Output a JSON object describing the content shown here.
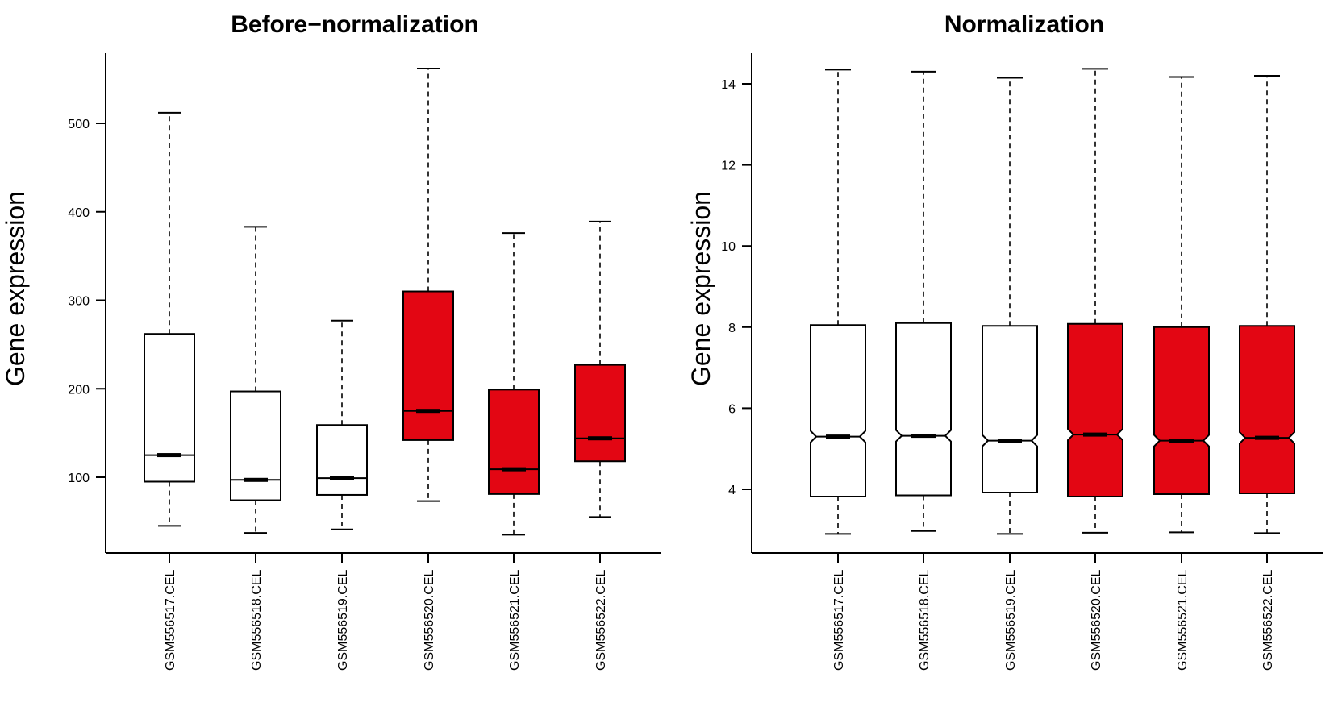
{
  "chart_data": [
    {
      "type": "boxplot",
      "title": "Before−normalization",
      "ylabel": "Gene expression",
      "xlabel": "",
      "ylim": [
        0,
        560
      ],
      "yticks": [
        "100",
        "200",
        "300",
        "400",
        "500"
      ],
      "notched": false,
      "categories": [
        "GSM556517.CEL",
        "GSM556518.CEL",
        "GSM556519.CEL",
        "GSM556520.CEL",
        "GSM556521.CEL",
        "GSM556522.CEL"
      ],
      "boxes": [
        {
          "whisker_low": 45,
          "q1": 95,
          "median": 125,
          "q3": 262,
          "whisker_high": 512,
          "fill": "#ffffff"
        },
        {
          "whisker_low": 37,
          "q1": 74,
          "median": 97,
          "q3": 197,
          "whisker_high": 383,
          "fill": "#ffffff"
        },
        {
          "whisker_low": 41,
          "q1": 80,
          "median": 99,
          "q3": 159,
          "whisker_high": 277,
          "fill": "#ffffff"
        },
        {
          "whisker_low": 73,
          "q1": 142,
          "median": 175,
          "q3": 310,
          "whisker_high": 562,
          "fill": "#e30613"
        },
        {
          "whisker_low": 35,
          "q1": 81,
          "median": 109,
          "q3": 199,
          "whisker_high": 376,
          "fill": "#e30613"
        },
        {
          "whisker_low": 55,
          "q1": 118,
          "median": 144,
          "q3": 227,
          "whisker_high": 389,
          "fill": "#e30613"
        }
      ]
    },
    {
      "type": "boxplot",
      "title": "Normalization",
      "ylabel": "Gene expression",
      "xlabel": "",
      "ylim": [
        2.6,
        14.6
      ],
      "yticks": [
        "4",
        "6",
        "8",
        "10",
        "12",
        "14"
      ],
      "notched": true,
      "categories": [
        "GSM556517.CEL",
        "GSM556518.CEL",
        "GSM556519.CEL",
        "GSM556520.CEL",
        "GSM556521.CEL",
        "GSM556522.CEL"
      ],
      "boxes": [
        {
          "whisker_low": 2.9,
          "q1": 3.82,
          "median": 5.3,
          "q3": 8.05,
          "whisker_high": 14.35,
          "fill": "#ffffff"
        },
        {
          "whisker_low": 2.97,
          "q1": 3.85,
          "median": 5.32,
          "q3": 8.1,
          "whisker_high": 14.3,
          "fill": "#ffffff"
        },
        {
          "whisker_low": 2.9,
          "q1": 3.92,
          "median": 5.2,
          "q3": 8.03,
          "whisker_high": 14.15,
          "fill": "#ffffff"
        },
        {
          "whisker_low": 2.93,
          "q1": 3.82,
          "median": 5.35,
          "q3": 8.08,
          "whisker_high": 14.37,
          "fill": "#e30613"
        },
        {
          "whisker_low": 2.94,
          "q1": 3.88,
          "median": 5.2,
          "q3": 8.0,
          "whisker_high": 14.17,
          "fill": "#e30613"
        },
        {
          "whisker_low": 2.92,
          "q1": 3.9,
          "median": 5.27,
          "q3": 8.03,
          "whisker_high": 14.2,
          "fill": "#e30613"
        }
      ]
    }
  ]
}
